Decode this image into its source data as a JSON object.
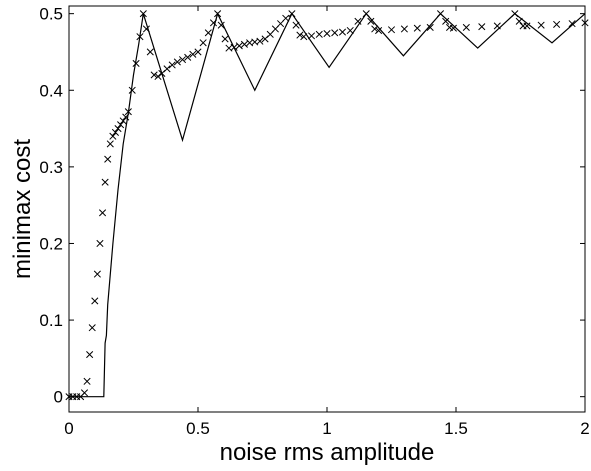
{
  "chart_data": {
    "type": "line",
    "title": "",
    "xlabel": "noise rms amplitude",
    "ylabel": "minimax cost",
    "xlim": [
      0,
      2
    ],
    "ylim": [
      -0.02,
      0.51
    ],
    "xticks": [
      0,
      0.5,
      1,
      1.5,
      2
    ],
    "xtick_labels": [
      "0",
      "0.5",
      "1",
      "1.5",
      "2"
    ],
    "yticks": [
      0,
      0.1,
      0.2,
      0.3,
      0.4,
      0.5
    ],
    "ytick_labels": [
      "0",
      "0.1",
      "0.2",
      "0.3",
      "0.4",
      "0.5"
    ],
    "grid": false,
    "legend": "none",
    "series": [
      {
        "style": "solid-line",
        "color": "#000000",
        "x": [
          0,
          0.05,
          0.1,
          0.135,
          0.14,
          0.145,
          0.15,
          0.17,
          0.19,
          0.21,
          0.23,
          0.25,
          0.27,
          0.288,
          0.44,
          0.576,
          0.72,
          0.864,
          1.008,
          1.152,
          1.296,
          1.44,
          1.584,
          1.728,
          1.872,
          2.0
        ],
        "values": [
          0,
          0,
          0,
          0,
          0.07,
          0.08,
          0.12,
          0.2,
          0.27,
          0.33,
          0.37,
          0.42,
          0.46,
          0.5,
          0.335,
          0.5,
          0.4,
          0.5,
          0.43,
          0.5,
          0.445,
          0.5,
          0.455,
          0.5,
          0.462,
          0.5
        ]
      },
      {
        "style": "x-markers",
        "color": "#000000",
        "x": [
          0.0,
          0.015,
          0.03,
          0.045,
          0.06,
          0.07,
          0.08,
          0.09,
          0.1,
          0.11,
          0.12,
          0.13,
          0.14,
          0.15,
          0.16,
          0.17,
          0.18,
          0.19,
          0.2,
          0.21,
          0.22,
          0.23,
          0.245,
          0.26,
          0.275,
          0.288,
          0.3,
          0.315,
          0.33,
          0.345,
          0.36,
          0.38,
          0.4,
          0.42,
          0.44,
          0.46,
          0.48,
          0.5,
          0.52,
          0.54,
          0.56,
          0.576,
          0.59,
          0.605,
          0.62,
          0.64,
          0.66,
          0.68,
          0.7,
          0.72,
          0.74,
          0.76,
          0.78,
          0.8,
          0.82,
          0.84,
          0.864,
          0.88,
          0.895,
          0.91,
          0.94,
          0.97,
          1.0,
          1.03,
          1.06,
          1.09,
          1.12,
          1.152,
          1.17,
          1.185,
          1.2,
          1.25,
          1.3,
          1.35,
          1.4,
          1.44,
          1.46,
          1.475,
          1.49,
          1.54,
          1.6,
          1.66,
          1.728,
          1.745,
          1.76,
          1.775,
          1.83,
          1.89,
          1.95,
          2.0
        ],
        "values": [
          0.0,
          0.0,
          0.0,
          0.0,
          0.005,
          0.02,
          0.055,
          0.09,
          0.125,
          0.16,
          0.2,
          0.24,
          0.28,
          0.31,
          0.33,
          0.34,
          0.345,
          0.35,
          0.355,
          0.36,
          0.365,
          0.372,
          0.4,
          0.435,
          0.47,
          0.5,
          0.48,
          0.45,
          0.42,
          0.418,
          0.422,
          0.428,
          0.433,
          0.437,
          0.44,
          0.443,
          0.447,
          0.45,
          0.462,
          0.475,
          0.488,
          0.5,
          0.485,
          0.467,
          0.455,
          0.456,
          0.458,
          0.46,
          0.462,
          0.463,
          0.464,
          0.467,
          0.473,
          0.48,
          0.487,
          0.494,
          0.5,
          0.485,
          0.472,
          0.47,
          0.471,
          0.473,
          0.474,
          0.475,
          0.476,
          0.478,
          0.49,
          0.5,
          0.49,
          0.48,
          0.478,
          0.479,
          0.48,
          0.481,
          0.482,
          0.5,
          0.49,
          0.482,
          0.481,
          0.482,
          0.483,
          0.484,
          0.5,
          0.49,
          0.484,
          0.484,
          0.485,
          0.486,
          0.487,
          0.488
        ]
      }
    ]
  }
}
